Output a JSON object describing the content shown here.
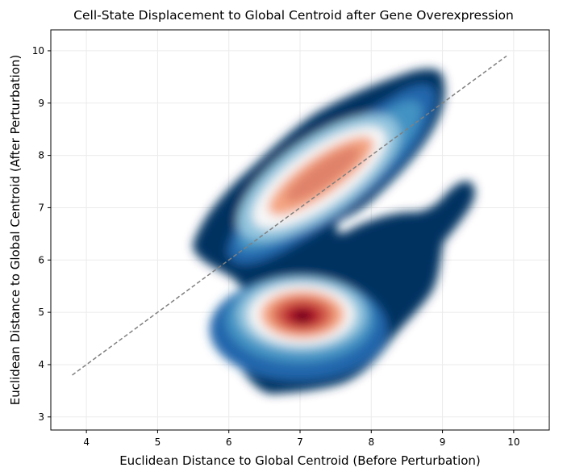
{
  "chart_data": {
    "type": "density-contour",
    "title": "Cell-State Displacement to Global Centroid after Gene Overexpression",
    "xlabel": "Euclidean Distance to Global Centroid (Before Perturbation)",
    "ylabel": "Euclidean Distance to Global Centroid (After Perturbation)",
    "xlim": [
      3.5,
      10.5
    ],
    "ylim": [
      2.75,
      10.4
    ],
    "xticks": [
      4,
      5,
      6,
      7,
      8,
      9,
      10
    ],
    "yticks": [
      3,
      4,
      5,
      6,
      7,
      8,
      9,
      10
    ],
    "grid": true,
    "colormap": "RdBu_r",
    "colors": [
      "#053061",
      "#2166ac",
      "#4393c3",
      "#92c5de",
      "#f7f7f7",
      "#f4a582",
      "#d6604d",
      "#b2182b",
      "#67001f"
    ],
    "reference_line": {
      "x": [
        3.8,
        9.9
      ],
      "y": [
        3.8,
        9.9
      ],
      "style": "dashed",
      "color": "#808080"
    },
    "clusters": [
      {
        "name": "upper",
        "center": [
          7.3,
          7.45
        ],
        "peak_density": 0.72
      },
      {
        "name": "lower",
        "center": [
          7.05,
          4.85
        ],
        "peak_density": 1.0
      },
      {
        "name": "tail",
        "center": [
          9.25,
          7.1
        ],
        "peak_density": 0.05
      }
    ]
  }
}
